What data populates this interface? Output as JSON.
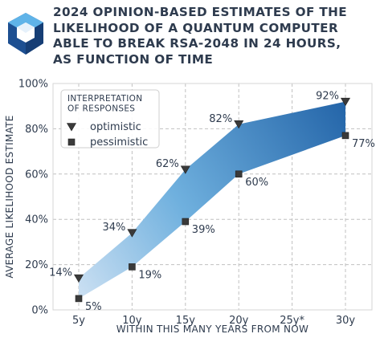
{
  "title": "2024 OPINION-BASED ESTIMATES OF THE\nLIKELIHOOD OF A QUANTUM COMPUTER\nABLE TO BREAK RSA-2048 IN 24 HOURS,\nAS FUNCTION OF TIME",
  "logo_icon": "hexagon-cube-logo",
  "colors": {
    "text": "#2e3b4e",
    "band_dark": "#2364a8",
    "band_light": "#dbe8f6",
    "marker": "#3a3a3a",
    "grid": "#c0c0c0"
  },
  "chart_data": {
    "type": "area",
    "categories": [
      "5y",
      "10y",
      "15y",
      "20y",
      "25y*",
      "30y"
    ],
    "xlabel": "WITHIN THIS MANY YEARS FROM NOW",
    "ylabel": "AVERAGE LIKELIHOOD ESTIMATE",
    "ylim": [
      0,
      100
    ],
    "yticks": [
      "0%",
      "20%",
      "40%",
      "60%",
      "80%",
      "100%"
    ],
    "grid": true,
    "legend": {
      "title": "INTERPRETATION\nOF RESPONSES",
      "placement": "top-left"
    },
    "series": [
      {
        "name": "optimistic",
        "marker": "triangle-down",
        "x": [
          "5y",
          "10y",
          "15y",
          "20y",
          "30y"
        ],
        "values": [
          14,
          34,
          62,
          82,
          92
        ],
        "labels": [
          "14%",
          "34%",
          "62%",
          "82%",
          "92%"
        ]
      },
      {
        "name": "pessimistic",
        "marker": "square",
        "x": [
          "5y",
          "10y",
          "15y",
          "20y",
          "30y"
        ],
        "values": [
          5,
          19,
          39,
          60,
          77
        ],
        "labels": [
          "5%",
          "19%",
          "39%",
          "60%",
          "77%"
        ]
      }
    ]
  }
}
